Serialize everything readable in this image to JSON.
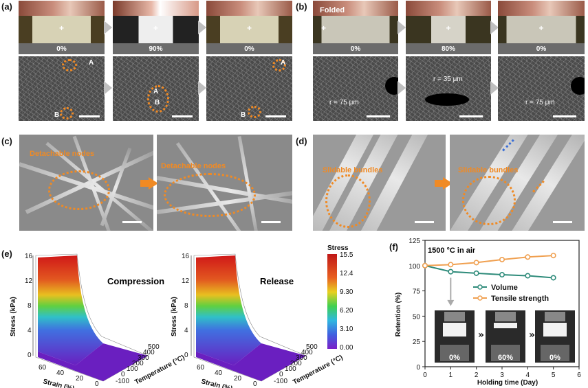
{
  "panels": {
    "a": {
      "label": "(a)",
      "strains": [
        "0%",
        "90%",
        "0%"
      ],
      "sem_marks": [
        "A",
        "B"
      ]
    },
    "b": {
      "label": "(b)",
      "folded_text": "Folded",
      "strains": [
        "0%",
        "80%",
        "0%"
      ],
      "radius_labels": [
        "r = 75 μm",
        "r = 35 μm",
        "r = 75 μm"
      ]
    },
    "c": {
      "label": "(c)",
      "annotation": "Detachable nodes"
    },
    "d": {
      "label": "(d)",
      "annotation": "Slidable bundles"
    },
    "e": {
      "label": "(e)",
      "left_title": "Compression",
      "right_title": "Release",
      "zlabel": "Stress (kPa)",
      "xlabel": "Strain (%)",
      "ylabel": "Temperature (°C)",
      "colorbar_title": "Stress",
      "colorbar_ticks": [
        "15.5",
        "12.4",
        "9.30",
        "6.20",
        "3.10",
        "0.00"
      ],
      "z_ticks": [
        "0",
        "4",
        "8",
        "12",
        "16"
      ],
      "strain_ticks": [
        "60",
        "40",
        "20",
        "0"
      ],
      "temp_ticks": [
        "500",
        "400",
        "300",
        "200",
        "100",
        "0",
        "-100"
      ]
    },
    "f": {
      "label": "(f)",
      "condition": "1500 °C in air",
      "photo_strains": [
        "0%",
        "60%",
        "0%"
      ]
    }
  },
  "chart_data": {
    "type": "line",
    "x": [
      0,
      1,
      2,
      3,
      4,
      5
    ],
    "series": [
      {
        "name": "Volume",
        "values": [
          100,
          94,
          92.5,
          91,
          90,
          88
        ],
        "color": "#2e8b7a"
      },
      {
        "name": "Tensile strength",
        "values": [
          100,
          101,
          103,
          106,
          108.5,
          110
        ],
        "color": "#f0a050"
      }
    ],
    "xlabel": "Holding time (Day)",
    "ylabel": "Retention (%)",
    "xlim": [
      0,
      6
    ],
    "ylim": [
      0,
      125
    ],
    "xticks": [
      0,
      1,
      2,
      3,
      4,
      5,
      6
    ],
    "yticks": [
      0,
      25,
      50,
      75,
      100,
      125
    ],
    "legend_placement": "middle-right",
    "annotation": "1500 °C in air"
  }
}
